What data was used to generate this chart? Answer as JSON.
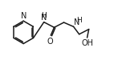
{
  "bg_color": "#ffffff",
  "line_color": "#1a1a1a",
  "line_width": 1.1,
  "font_size": 6.5,
  "figsize": [
    1.42,
    0.85
  ],
  "dpi": 100,
  "xlim": [
    0,
    10
  ],
  "ylim": [
    0,
    6
  ]
}
